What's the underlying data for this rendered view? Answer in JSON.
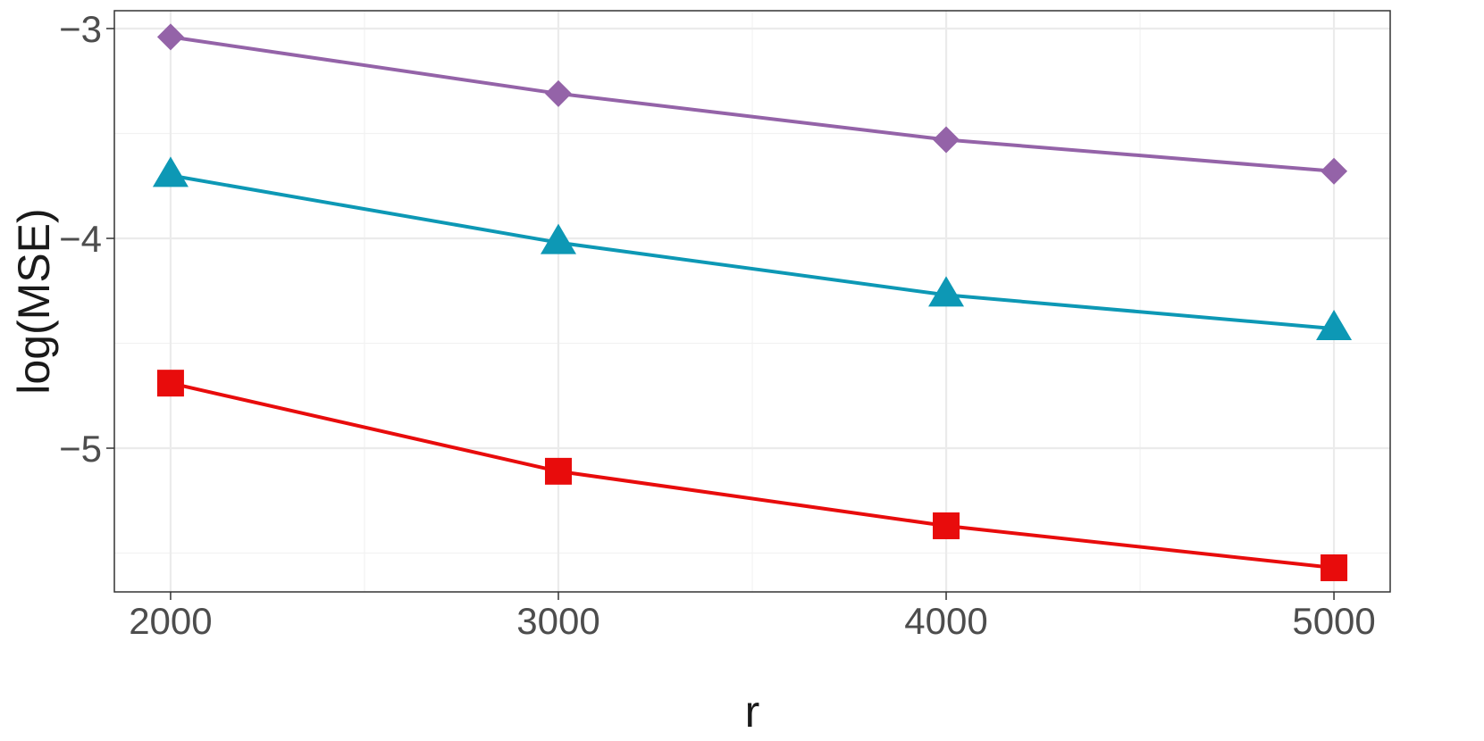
{
  "chart_data": {
    "type": "line",
    "xlabel": "r",
    "ylabel": "log(MSE)",
    "x": [
      2000,
      3000,
      4000,
      5000
    ],
    "x_ticks": [
      2000,
      3000,
      4000,
      5000
    ],
    "x_tick_labels": [
      "2000",
      "3000",
      "4000",
      "5000"
    ],
    "y_ticks": [
      -3,
      -4,
      -5
    ],
    "y_tick_labels": [
      "−3",
      "−4",
      "−5"
    ],
    "xlim": [
      1855,
      5145
    ],
    "ylim": [
      -5.685,
      -2.915
    ],
    "grid": true,
    "legend": "none",
    "series": [
      {
        "marker": "diamond",
        "color": "#9463A8",
        "values": [
          -3.04,
          -3.31,
          -3.53,
          -3.68
        ]
      },
      {
        "marker": "triangle",
        "color": "#0D98B5",
        "values": [
          -3.7,
          -4.02,
          -4.27,
          -4.43
        ]
      },
      {
        "marker": "square",
        "color": "#E80C0C",
        "values": [
          -4.69,
          -5.11,
          -5.37,
          -5.57
        ]
      }
    ]
  }
}
